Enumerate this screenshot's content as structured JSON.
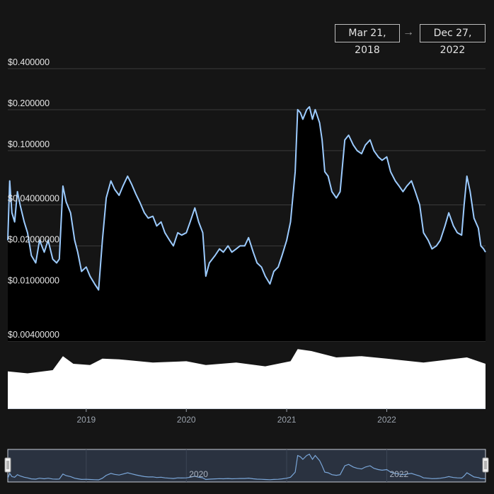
{
  "date_range": {
    "start": "Mar 21, 2018",
    "arrow": "→",
    "end": "Dec 27, 2022"
  },
  "navigator": {
    "labels": [
      "2020",
      "2022"
    ]
  },
  "colors": {
    "background": "#151515",
    "line": "#9ccbff",
    "volume": "#ffffff",
    "navigator_fill": "#2a3240",
    "navigator_line": "#7aa6d8"
  },
  "chart_data": {
    "type": "area",
    "title": "",
    "xlabel": "",
    "ylabel": "",
    "y_scale": "log",
    "ylim": [
      0.004,
      0.4
    ],
    "xlim": [
      "2018-03-21",
      "2022-12-27"
    ],
    "y_ticks": [
      {
        "value": 0.4,
        "label": "$0.400000"
      },
      {
        "value": 0.2,
        "label": "$0.200000"
      },
      {
        "value": 0.1,
        "label": "$0.100000"
      },
      {
        "value": 0.04,
        "label": "$0.04000000"
      },
      {
        "value": 0.02,
        "label": "$0.02000000"
      },
      {
        "value": 0.01,
        "label": "$0.01000000"
      },
      {
        "value": 0.004,
        "label": "$0.00400000"
      }
    ],
    "x_ticks": [
      {
        "value": "2019-01-01",
        "label": "2019"
      },
      {
        "value": "2020-01-01",
        "label": "2020"
      },
      {
        "value": "2021-01-01",
        "label": "2021"
      },
      {
        "value": "2022-01-01",
        "label": "2022"
      }
    ],
    "grid": true,
    "series": [
      {
        "values_kind": "price",
        "points": [
          [
            "2018-03-21",
            0.022
          ],
          [
            "2018-03-28",
            0.06
          ],
          [
            "2018-04-05",
            0.035
          ],
          [
            "2018-04-15",
            0.03
          ],
          [
            "2018-04-25",
            0.05
          ],
          [
            "2018-05-05",
            0.04
          ],
          [
            "2018-05-20",
            0.03
          ],
          [
            "2018-06-01",
            0.025
          ],
          [
            "2018-06-15",
            0.017
          ],
          [
            "2018-07-01",
            0.015
          ],
          [
            "2018-07-15",
            0.022
          ],
          [
            "2018-08-01",
            0.018
          ],
          [
            "2018-08-15",
            0.022
          ],
          [
            "2018-09-01",
            0.016
          ],
          [
            "2018-09-15",
            0.015
          ],
          [
            "2018-09-25",
            0.016
          ],
          [
            "2018-10-08",
            0.055
          ],
          [
            "2018-10-20",
            0.042
          ],
          [
            "2018-11-05",
            0.035
          ],
          [
            "2018-11-20",
            0.022
          ],
          [
            "2018-12-01",
            0.018
          ],
          [
            "2018-12-15",
            0.013
          ],
          [
            "2019-01-01",
            0.014
          ],
          [
            "2019-01-15",
            0.012
          ],
          [
            "2019-02-01",
            0.0105
          ],
          [
            "2019-02-15",
            0.0095
          ],
          [
            "2019-03-01",
            0.022
          ],
          [
            "2019-03-15",
            0.045
          ],
          [
            "2019-04-01",
            0.06
          ],
          [
            "2019-04-15",
            0.052
          ],
          [
            "2019-05-01",
            0.047
          ],
          [
            "2019-05-15",
            0.055
          ],
          [
            "2019-06-01",
            0.065
          ],
          [
            "2019-06-15",
            0.057
          ],
          [
            "2019-07-01",
            0.048
          ],
          [
            "2019-07-15",
            0.042
          ],
          [
            "2019-08-01",
            0.035
          ],
          [
            "2019-08-15",
            0.032
          ],
          [
            "2019-09-01",
            0.033
          ],
          [
            "2019-09-15",
            0.028
          ],
          [
            "2019-10-01",
            0.03
          ],
          [
            "2019-10-15",
            0.025
          ],
          [
            "2019-11-01",
            0.022
          ],
          [
            "2019-11-15",
            0.02
          ],
          [
            "2019-12-01",
            0.025
          ],
          [
            "2019-12-15",
            0.024
          ],
          [
            "2020-01-01",
            0.025
          ],
          [
            "2020-01-15",
            0.03
          ],
          [
            "2020-02-01",
            0.038
          ],
          [
            "2020-02-15",
            0.03
          ],
          [
            "2020-03-01",
            0.025
          ],
          [
            "2020-03-12",
            0.012
          ],
          [
            "2020-03-25",
            0.015
          ],
          [
            "2020-04-15",
            0.017
          ],
          [
            "2020-05-01",
            0.019
          ],
          [
            "2020-05-15",
            0.018
          ],
          [
            "2020-06-01",
            0.02
          ],
          [
            "2020-06-15",
            0.018
          ],
          [
            "2020-07-01",
            0.019
          ],
          [
            "2020-07-15",
            0.02
          ],
          [
            "2020-08-01",
            0.02
          ],
          [
            "2020-08-15",
            0.023
          ],
          [
            "2020-09-01",
            0.018
          ],
          [
            "2020-09-15",
            0.015
          ],
          [
            "2020-10-01",
            0.014
          ],
          [
            "2020-10-15",
            0.012
          ],
          [
            "2020-11-01",
            0.0105
          ],
          [
            "2020-11-15",
            0.013
          ],
          [
            "2020-12-01",
            0.014
          ],
          [
            "2020-12-15",
            0.017
          ],
          [
            "2021-01-01",
            0.022
          ],
          [
            "2021-01-15",
            0.03
          ],
          [
            "2021-02-01",
            0.07
          ],
          [
            "2021-02-10",
            0.2
          ],
          [
            "2021-02-20",
            0.19
          ],
          [
            "2021-03-01",
            0.17
          ],
          [
            "2021-03-15",
            0.2
          ],
          [
            "2021-03-25",
            0.21
          ],
          [
            "2021-04-05",
            0.17
          ],
          [
            "2021-04-15",
            0.2
          ],
          [
            "2021-05-01",
            0.16
          ],
          [
            "2021-05-10",
            0.12
          ],
          [
            "2021-05-20",
            0.07
          ],
          [
            "2021-06-01",
            0.065
          ],
          [
            "2021-06-15",
            0.05
          ],
          [
            "2021-07-01",
            0.045
          ],
          [
            "2021-07-15",
            0.05
          ],
          [
            "2021-08-01",
            0.12
          ],
          [
            "2021-08-15",
            0.13
          ],
          [
            "2021-09-01",
            0.11
          ],
          [
            "2021-09-15",
            0.1
          ],
          [
            "2021-10-01",
            0.095
          ],
          [
            "2021-10-15",
            0.11
          ],
          [
            "2021-11-01",
            0.12
          ],
          [
            "2021-11-15",
            0.1
          ],
          [
            "2021-12-01",
            0.09
          ],
          [
            "2021-12-15",
            0.085
          ],
          [
            "2022-01-01",
            0.09
          ],
          [
            "2022-01-15",
            0.07
          ],
          [
            "2022-02-01",
            0.06
          ],
          [
            "2022-02-15",
            0.055
          ],
          [
            "2022-03-01",
            0.05
          ],
          [
            "2022-03-15",
            0.055
          ],
          [
            "2022-04-01",
            0.06
          ],
          [
            "2022-04-15",
            0.05
          ],
          [
            "2022-05-01",
            0.04
          ],
          [
            "2022-05-15",
            0.025
          ],
          [
            "2022-06-01",
            0.022
          ],
          [
            "2022-06-15",
            0.019
          ],
          [
            "2022-07-01",
            0.02
          ],
          [
            "2022-07-15",
            0.022
          ],
          [
            "2022-08-01",
            0.028
          ],
          [
            "2022-08-15",
            0.035
          ],
          [
            "2022-09-01",
            0.028
          ],
          [
            "2022-09-15",
            0.025
          ],
          [
            "2022-10-01",
            0.024
          ],
          [
            "2022-10-10",
            0.04
          ],
          [
            "2022-10-20",
            0.065
          ],
          [
            "2022-11-01",
            0.05
          ],
          [
            "2022-11-15",
            0.032
          ],
          [
            "2022-12-01",
            0.027
          ],
          [
            "2022-12-10",
            0.02
          ],
          [
            "2022-12-20",
            0.019
          ],
          [
            "2022-12-27",
            0.018
          ]
        ]
      }
    ],
    "volume": {
      "scale": "relative",
      "points": [
        [
          "2018-03-21",
          0.58
        ],
        [
          "2018-06-01",
          0.55
        ],
        [
          "2018-09-01",
          0.6
        ],
        [
          "2018-10-08",
          0.82
        ],
        [
          "2018-11-15",
          0.7
        ],
        [
          "2019-01-15",
          0.68
        ],
        [
          "2019-03-01",
          0.78
        ],
        [
          "2019-05-01",
          0.77
        ],
        [
          "2019-09-01",
          0.72
        ],
        [
          "2020-01-01",
          0.74
        ],
        [
          "2020-03-12",
          0.68
        ],
        [
          "2020-07-01",
          0.72
        ],
        [
          "2020-10-15",
          0.66
        ],
        [
          "2021-01-15",
          0.74
        ],
        [
          "2021-02-10",
          0.93
        ],
        [
          "2021-04-01",
          0.9
        ],
        [
          "2021-07-01",
          0.8
        ],
        [
          "2021-10-01",
          0.82
        ],
        [
          "2022-01-01",
          0.78
        ],
        [
          "2022-05-15",
          0.72
        ],
        [
          "2022-10-20",
          0.8
        ],
        [
          "2022-12-27",
          0.7
        ]
      ]
    }
  }
}
